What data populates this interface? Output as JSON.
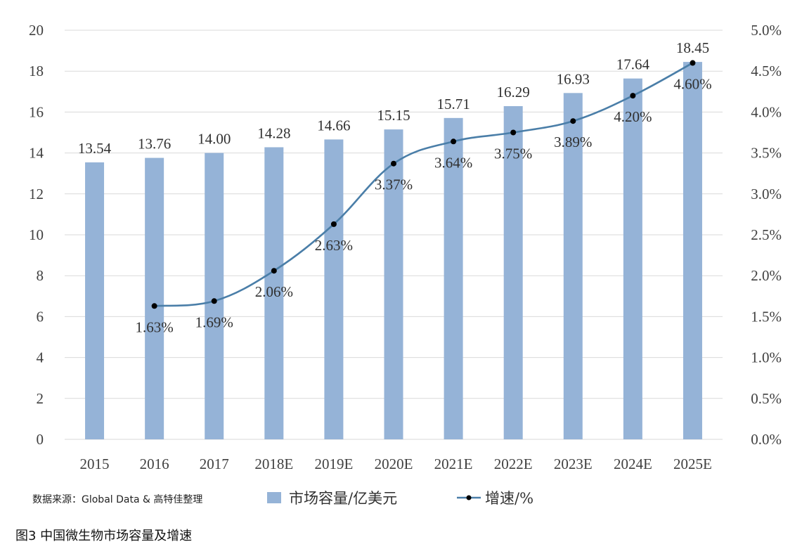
{
  "chart_data": {
    "type": "bar",
    "categories": [
      "2015",
      "2016",
      "2017",
      "2018E",
      "2019E",
      "2020E",
      "2021E",
      "2022E",
      "2023E",
      "2024E",
      "2025E"
    ],
    "series": [
      {
        "name": "市场容量/亿美元",
        "type": "bar",
        "axis": "left",
        "values": [
          13.54,
          13.76,
          14.0,
          14.28,
          14.66,
          15.15,
          15.71,
          16.29,
          16.93,
          17.64,
          18.45
        ],
        "labels": [
          "13.54",
          "13.76",
          "14.00",
          "14.28",
          "14.66",
          "15.15",
          "15.71",
          "16.29",
          "16.93",
          "17.64",
          "18.45"
        ]
      },
      {
        "name": "增速/%",
        "type": "line",
        "axis": "right",
        "values": [
          null,
          1.63,
          1.69,
          2.06,
          2.63,
          3.37,
          3.64,
          3.75,
          3.89,
          4.2,
          4.6
        ],
        "labels": [
          "",
          "1.63%",
          "1.69%",
          "2.06%",
          "2.63%",
          "3.37%",
          "3.64%",
          "3.75%",
          "3.89%",
          "4.20%",
          "4.60%"
        ]
      }
    ],
    "ylim": [
      0,
      20
    ],
    "y_ticks": [
      "0",
      "2",
      "4",
      "6",
      "8",
      "10",
      "12",
      "14",
      "16",
      "18",
      "20"
    ],
    "y2lim": [
      0,
      5
    ],
    "y2_ticks": [
      "0.0%",
      "0.5%",
      "1.0%",
      "1.5%",
      "2.0%",
      "2.5%",
      "3.0%",
      "3.5%",
      "4.0%",
      "4.5%",
      "5.0%"
    ],
    "grid": true,
    "legend_position": "bottom",
    "colors": {
      "bar": "#95b3d7",
      "line": "#4a7ea8",
      "marker": "#000000",
      "grid": "#d9d9d9"
    }
  },
  "source_text": "数据来源：Global Data & 高特佳整理",
  "caption": "图3 中国微生物市场容量及增速"
}
